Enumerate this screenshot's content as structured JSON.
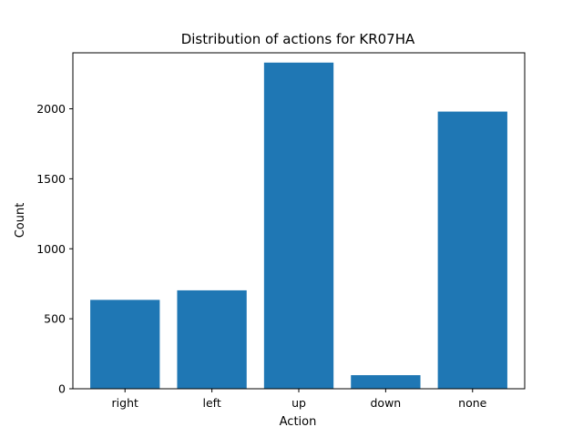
{
  "chart_data": {
    "type": "bar",
    "title": "Distribution of actions for KR07HA",
    "xlabel": "Action",
    "ylabel": "Count",
    "categories": [
      "right",
      "left",
      "up",
      "down",
      "none"
    ],
    "values": [
      635,
      703,
      2330,
      97,
      1980
    ],
    "ylim": [
      0,
      2400
    ],
    "yticks": [
      0,
      500,
      1000,
      1500,
      2000
    ],
    "bar_color": "#1f77b4",
    "grid": false,
    "legend": "none"
  }
}
